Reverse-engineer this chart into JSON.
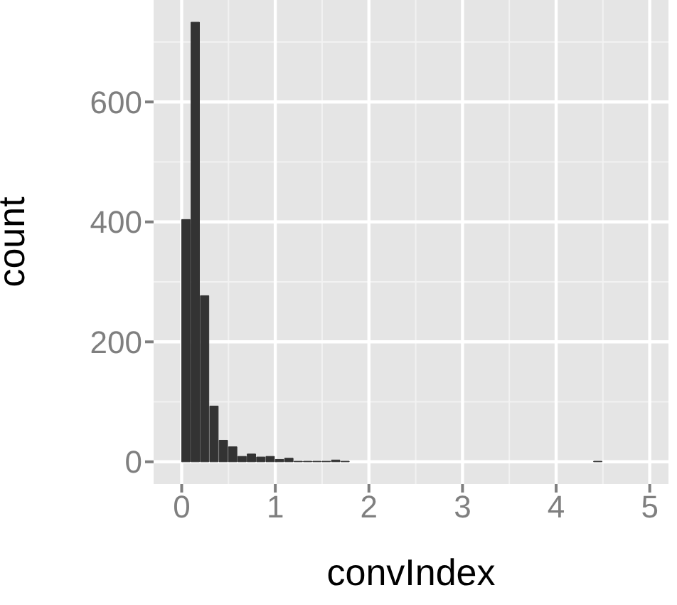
{
  "chart_data": {
    "type": "histogram",
    "xlabel": "convIndex",
    "ylabel": "count",
    "bins": [
      0,
      0.1,
      0.2,
      0.3,
      0.4,
      0.5,
      0.6,
      0.7,
      0.8,
      0.9,
      1,
      1.1,
      1.2,
      1.3,
      1.4,
      1.5,
      1.6,
      1.7,
      1.8,
      1.9,
      2,
      2.1,
      2.2,
      2.3,
      2.4,
      2.5,
      2.6,
      2.7,
      2.8,
      2.9,
      3,
      3.1,
      3.2,
      3.3,
      3.4,
      3.5,
      3.6,
      3.7,
      3.8,
      3.9,
      4,
      4.1,
      4.2,
      4.3,
      4.4,
      4.5,
      4.6,
      4.7,
      4.8,
      4.9,
      5
    ],
    "values": [
      404,
      733,
      277,
      93,
      36,
      25,
      9,
      13,
      8,
      9,
      4,
      6,
      1,
      1,
      1,
      1,
      3,
      1,
      0,
      0,
      0,
      0,
      0,
      0,
      0,
      0,
      0,
      0,
      0,
      0,
      0,
      0,
      0,
      0,
      0,
      0,
      0,
      0,
      0,
      0,
      0,
      0,
      0,
      0,
      1,
      0,
      0,
      0,
      0,
      0
    ],
    "color": "#333333",
    "xlim": [
      -0.3,
      5.2
    ],
    "xticks": [
      0,
      1,
      2,
      3,
      4,
      5
    ],
    "ylim": [
      -37,
      770
    ],
    "yticks": [
      0,
      200,
      400,
      600
    ],
    "grid": true
  }
}
